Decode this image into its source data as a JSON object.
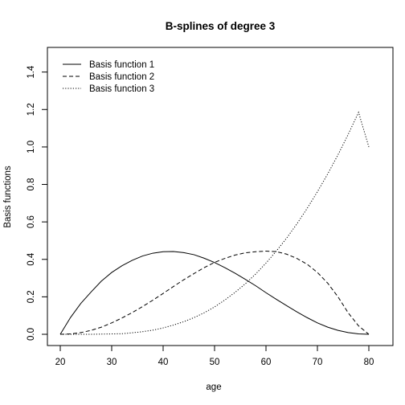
{
  "chart_data": {
    "type": "line",
    "title": "B-splines of degree 3",
    "xlabel": "age",
    "ylabel": "Basis functions",
    "xlim": [
      20,
      80
    ],
    "ylim": [
      0,
      1.45
    ],
    "xticks": [
      "20",
      "30",
      "40",
      "50",
      "60",
      "70",
      "80"
    ],
    "yticks": [
      "0.0",
      "0.2",
      "0.4",
      "0.6",
      "0.8",
      "1.0",
      "1.2",
      "1.4"
    ],
    "grid": false,
    "legend_position": "top-left",
    "x": [
      20,
      22,
      24,
      26,
      28,
      30,
      32,
      34,
      36,
      38,
      40,
      42,
      44,
      46,
      48,
      50,
      52,
      54,
      56,
      58,
      60,
      62,
      64,
      66,
      68,
      70,
      72,
      74,
      76,
      78,
      80
    ],
    "series": [
      {
        "name": "Basis function 1",
        "line_style": "solid",
        "values": [
          0,
          0.09,
          0.165,
          0.226,
          0.284,
          0.33,
          0.366,
          0.395,
          0.418,
          0.433,
          0.441,
          0.442,
          0.436,
          0.425,
          0.406,
          0.383,
          0.356,
          0.326,
          0.293,
          0.259,
          0.222,
          0.187,
          0.153,
          0.12,
          0.089,
          0.061,
          0.038,
          0.021,
          0.009,
          0.002,
          0
        ]
      },
      {
        "name": "Basis function 2",
        "line_style": "dashed",
        "values": [
          0,
          0.002,
          0.009,
          0.021,
          0.038,
          0.061,
          0.087,
          0.116,
          0.148,
          0.182,
          0.218,
          0.255,
          0.291,
          0.324,
          0.356,
          0.384,
          0.405,
          0.423,
          0.435,
          0.441,
          0.444,
          0.441,
          0.428,
          0.405,
          0.374,
          0.33,
          0.273,
          0.2,
          0.114,
          0.045,
          0
        ]
      },
      {
        "name": "Basis function 3",
        "line_style": "dotted",
        "values": [
          0,
          0,
          0,
          0,
          0.001,
          0.002,
          0.003,
          0.008,
          0.014,
          0.022,
          0.034,
          0.049,
          0.067,
          0.089,
          0.115,
          0.146,
          0.183,
          0.224,
          0.27,
          0.322,
          0.38,
          0.444,
          0.513,
          0.589,
          0.672,
          0.761,
          0.856,
          0.958,
          1.068,
          1.185,
          1.0
        ]
      }
    ]
  }
}
